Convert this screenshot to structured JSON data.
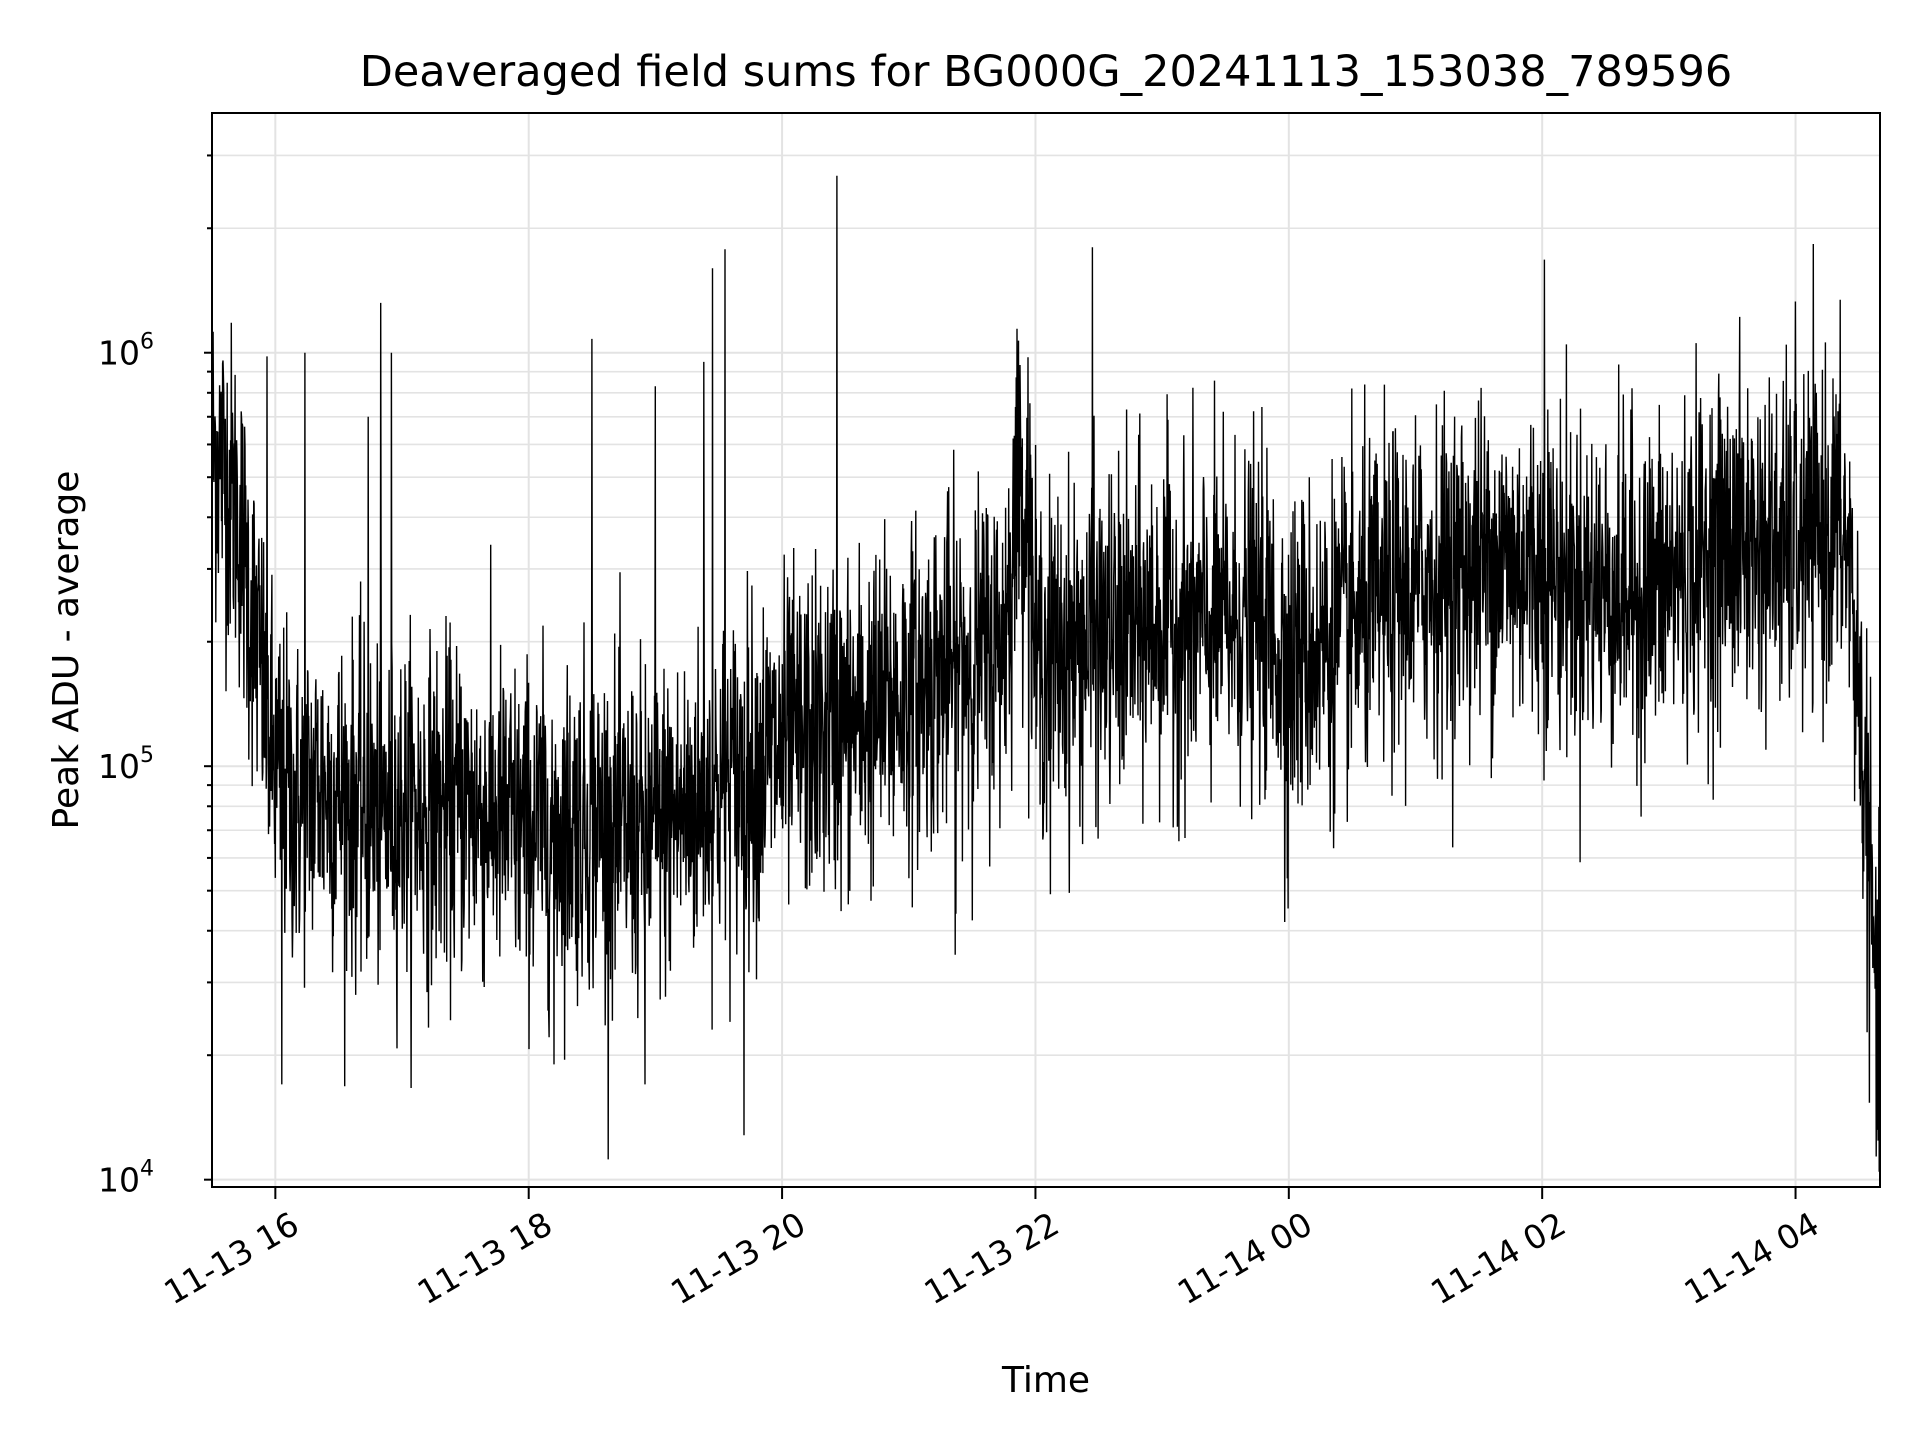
{
  "chart_data": {
    "type": "line",
    "title": "Deaveraged field sums for BG000G_20241113_153038_789596",
    "xlabel": "Time",
    "ylabel": "Peak ADU - average",
    "yscale": "log",
    "ylim": [
      9600,
      3800000
    ],
    "xlim": [
      "2024-11-13T15:30",
      "2024-11-14T04:40"
    ],
    "grid": true,
    "line_color": "#000000",
    "x_ticks": [
      {
        "time": "2024-11-13T16:00",
        "label": "11-13 16"
      },
      {
        "time": "2024-11-13T18:00",
        "label": "11-13 18"
      },
      {
        "time": "2024-11-13T20:00",
        "label": "11-13 20"
      },
      {
        "time": "2024-11-13T22:00",
        "label": "11-13 22"
      },
      {
        "time": "2024-11-14T00:00",
        "label": "11-14 00"
      },
      {
        "time": "2024-11-14T02:00",
        "label": "11-14 02"
      },
      {
        "time": "2024-11-14T04:00",
        "label": "11-14 04"
      }
    ],
    "y_ticks": [
      {
        "value": 10000,
        "base": "10",
        "exp": "4"
      },
      {
        "value": 100000,
        "base": "10",
        "exp": "5"
      },
      {
        "value": 1000000,
        "base": "10",
        "exp": "6"
      }
    ],
    "series": [
      {
        "x": [
          "2024-11-13T15:30",
          "2024-11-13T15:36",
          "2024-11-13T15:42",
          "2024-11-13T15:48",
          "2024-11-13T15:54",
          "2024-11-13T16:00",
          "2024-11-13T16:10",
          "2024-11-13T16:20",
          "2024-11-13T16:30",
          "2024-11-13T16:40",
          "2024-11-13T16:50",
          "2024-11-13T17:00",
          "2024-11-13T17:15",
          "2024-11-13T17:30",
          "2024-11-13T17:45",
          "2024-11-13T18:00",
          "2024-11-13T18:15",
          "2024-11-13T18:30",
          "2024-11-13T18:45",
          "2024-11-13T19:00",
          "2024-11-13T19:15",
          "2024-11-13T19:30",
          "2024-11-13T19:45",
          "2024-11-13T20:00",
          "2024-11-13T20:15",
          "2024-11-13T20:30",
          "2024-11-13T20:45",
          "2024-11-13T21:00",
          "2024-11-13T21:15",
          "2024-11-13T21:30",
          "2024-11-13T21:45",
          "2024-11-13T21:52",
          "2024-11-13T21:57",
          "2024-11-13T22:00",
          "2024-11-13T22:15",
          "2024-11-13T22:30",
          "2024-11-13T22:45",
          "2024-11-13T23:00",
          "2024-11-13T23:15",
          "2024-11-13T23:30",
          "2024-11-13T23:45",
          "2024-11-14T00:00",
          "2024-11-14T00:15",
          "2024-11-14T00:30",
          "2024-11-14T00:45",
          "2024-11-14T01:00",
          "2024-11-14T01:15",
          "2024-11-14T01:30",
          "2024-11-14T01:45",
          "2024-11-14T02:00",
          "2024-11-14T02:15",
          "2024-11-14T02:30",
          "2024-11-14T02:45",
          "2024-11-14T03:00",
          "2024-11-14T03:15",
          "2024-11-14T03:30",
          "2024-11-14T03:45",
          "2024-11-14T04:00",
          "2024-11-14T04:10",
          "2024-11-14T04:20",
          "2024-11-14T04:25",
          "2024-11-14T04:30",
          "2024-11-14T04:35",
          "2024-11-14T04:40"
        ],
        "y": [
          600000,
          520000,
          420000,
          250000,
          160000,
          95000,
          80000,
          90000,
          85000,
          80000,
          75000,
          80000,
          78000,
          80000,
          75000,
          70000,
          72000,
          75000,
          68000,
          70000,
          78000,
          88000,
          100000,
          110000,
          120000,
          125000,
          135000,
          150000,
          170000,
          180000,
          200000,
          480000,
          420000,
          180000,
          190000,
          200000,
          210000,
          230000,
          215000,
          220000,
          230000,
          180000,
          195000,
          220000,
          250000,
          270000,
          290000,
          310000,
          315000,
          300000,
          280000,
          270000,
          260000,
          280000,
          320000,
          350000,
          340000,
          330000,
          360000,
          380000,
          330000,
          150000,
          60000,
          15000
        ],
        "noise_sigma_decades": 0.2,
        "spikes": [
          {
            "time": "2024-11-13T15:56",
            "value": 980000
          },
          {
            "time": "2024-11-13T16:14",
            "value": 1000000
          },
          {
            "time": "2024-11-13T16:44",
            "value": 700000
          },
          {
            "time": "2024-11-13T16:50",
            "value": 1320000
          },
          {
            "time": "2024-11-13T16:55",
            "value": 1000000
          },
          {
            "time": "2024-11-13T18:30",
            "value": 1080000
          },
          {
            "time": "2024-11-13T19:00",
            "value": 830000
          },
          {
            "time": "2024-11-13T19:23",
            "value": 950000
          },
          {
            "time": "2024-11-13T19:27",
            "value": 1600000
          },
          {
            "time": "2024-11-13T19:33",
            "value": 1780000
          },
          {
            "time": "2024-11-13T20:26",
            "value": 2680000
          },
          {
            "time": "2024-11-13T21:52",
            "value": 1070000
          },
          {
            "time": "2024-11-13T22:27",
            "value": 1800000
          },
          {
            "time": "2024-11-14T02:01",
            "value": 1680000
          },
          {
            "time": "2024-11-14T04:00",
            "value": 1330000
          }
        ],
        "dips": [
          {
            "time": "2024-11-13T16:03",
            "value": 17000
          },
          {
            "time": "2024-11-13T18:12",
            "value": 19000
          },
          {
            "time": "2024-11-13T18:55",
            "value": 17000
          },
          {
            "time": "2024-11-13T19:42",
            "value": 12800
          },
          {
            "time": "2024-11-13T21:22",
            "value": 35000
          },
          {
            "time": "2024-11-13T22:07",
            "value": 49000
          },
          {
            "time": "2024-11-13T23:58",
            "value": 42000
          },
          {
            "time": "2024-11-14T04:40",
            "value": 15000
          }
        ]
      }
    ]
  }
}
